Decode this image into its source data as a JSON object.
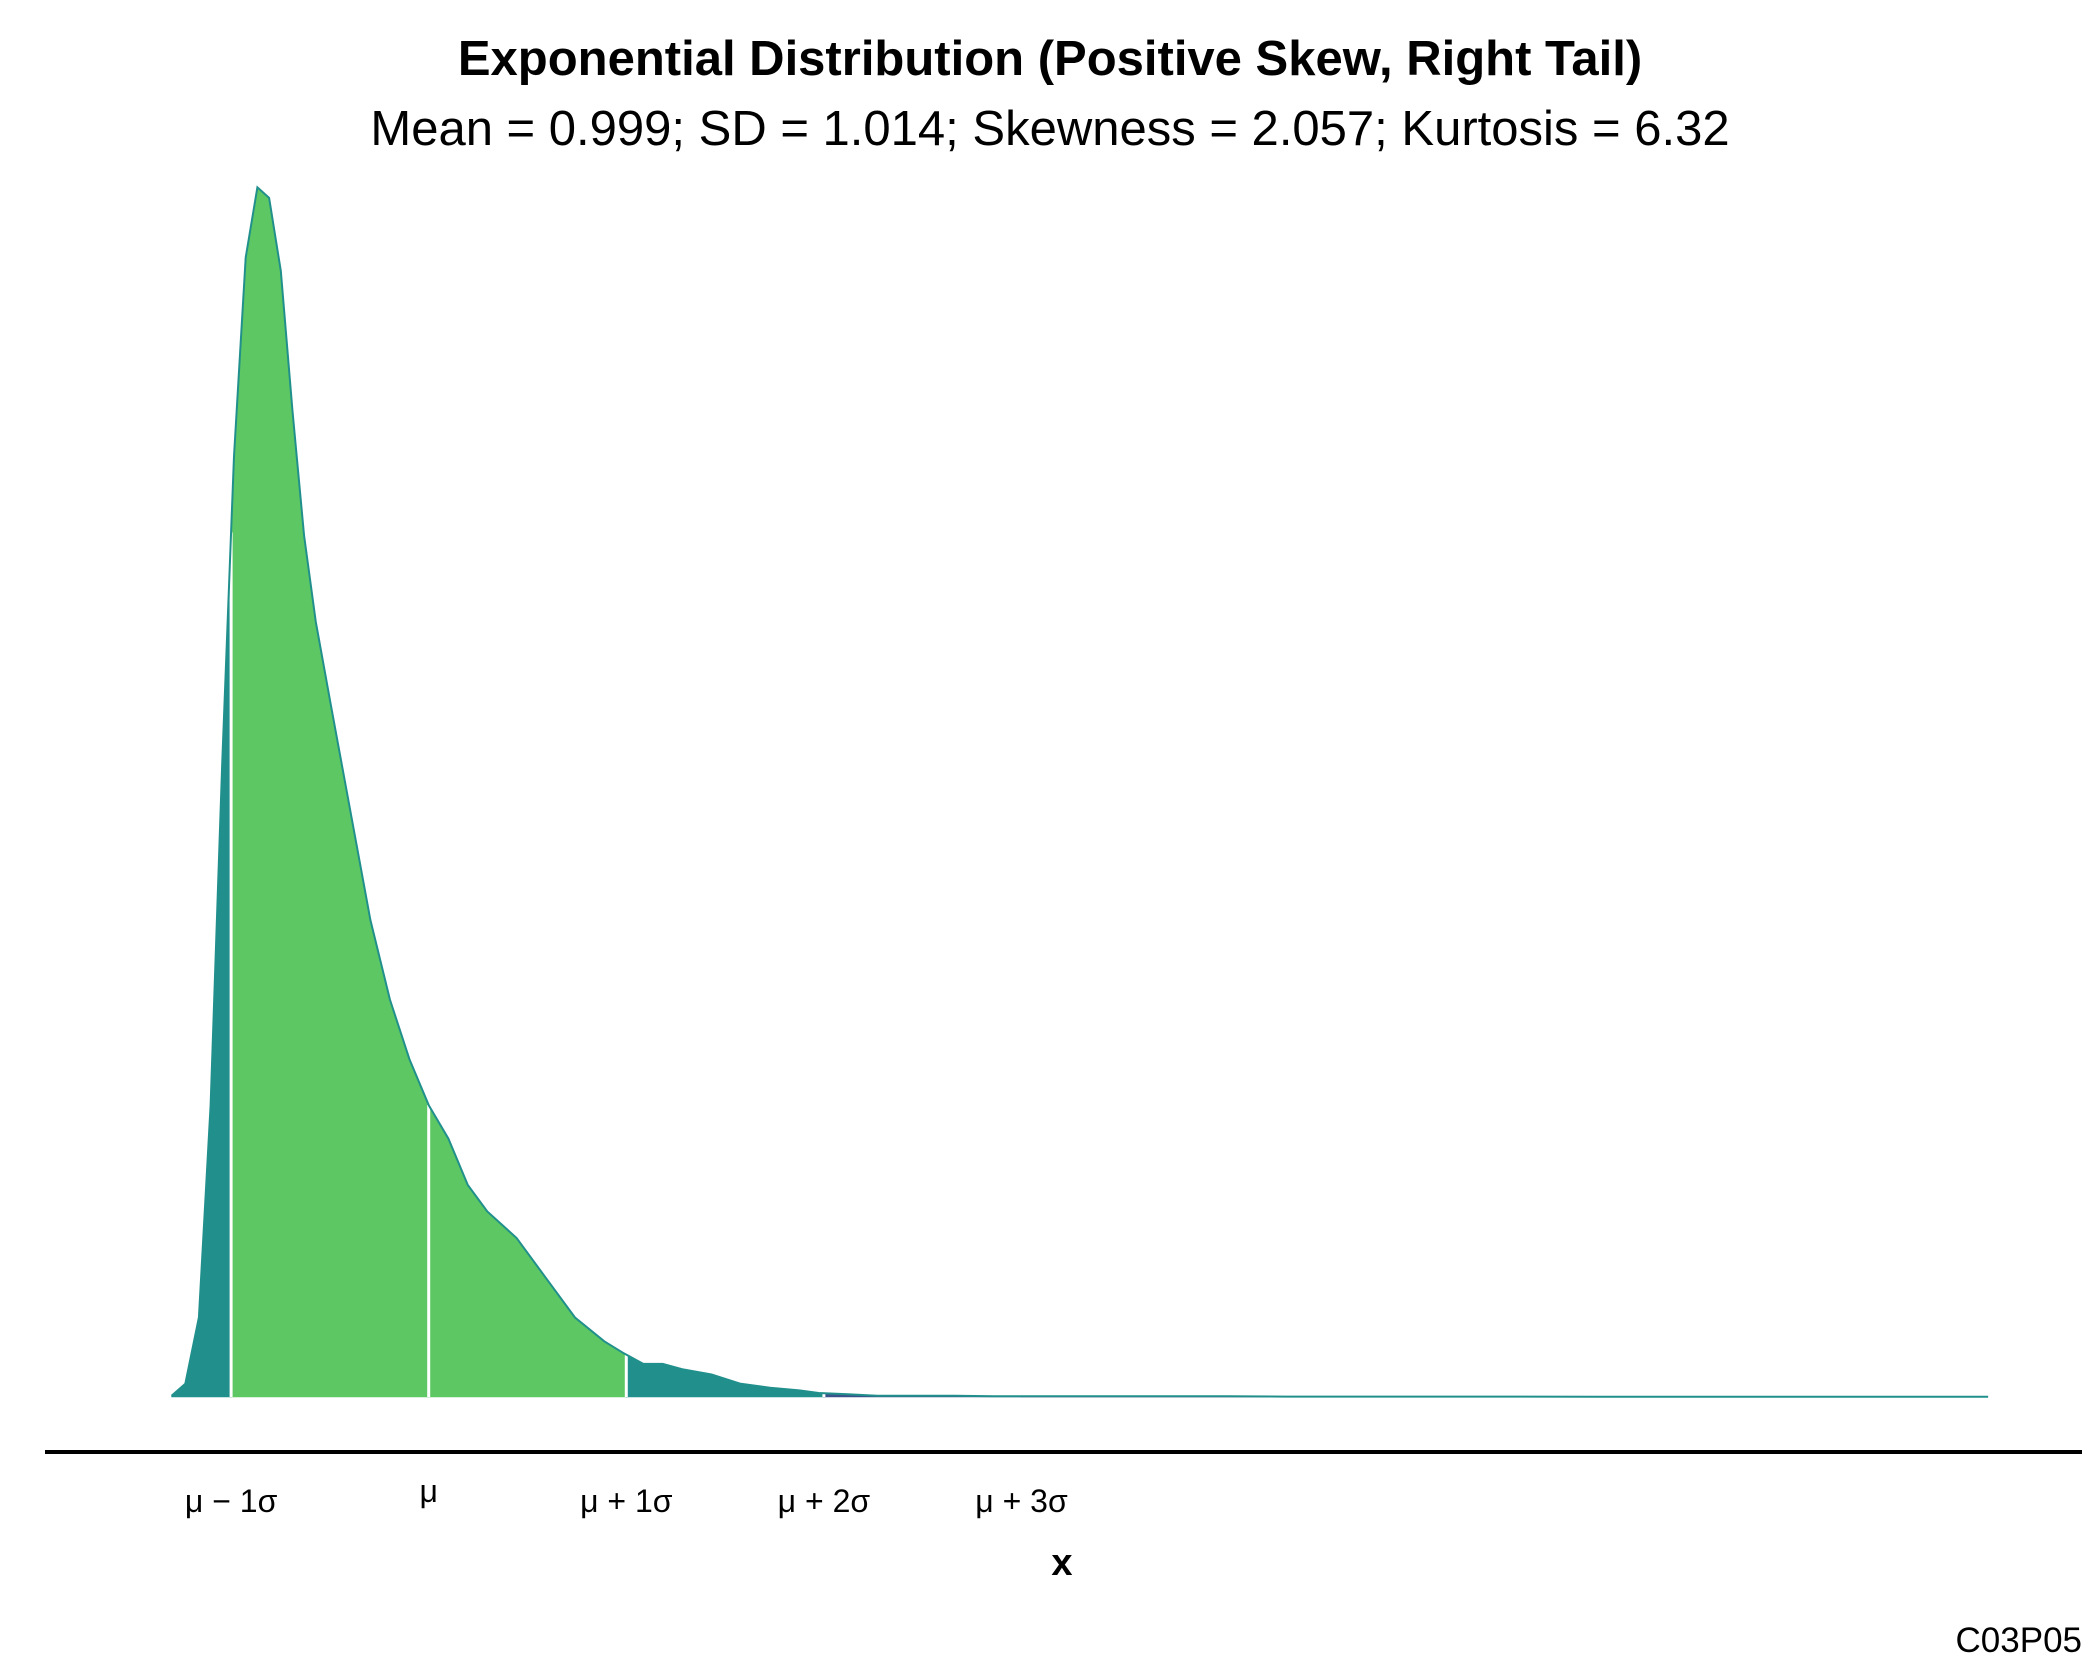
{
  "chart_data": {
    "type": "area",
    "title": "Exponential Distribution (Positive Skew, Right Tail)",
    "subtitle": "Mean = 0.999; SD = 1.014; Skewness = 2.057; Kurtosis = 6.32",
    "xlabel": "x",
    "ylabel": "",
    "caption": "C03P05",
    "grid": false,
    "legend": "none",
    "stats": {
      "mean": 0.999,
      "sd": 1.014,
      "skewness": 2.057,
      "kurtosis": 6.32
    },
    "xlim": [
      -0.2,
      9.0
    ],
    "ylim": [
      0,
      0.92
    ],
    "density": {
      "x": [
        -0.32,
        -0.25,
        -0.18,
        -0.12,
        -0.06,
        0.0,
        0.06,
        0.12,
        0.18,
        0.24,
        0.3,
        0.36,
        0.42,
        0.5,
        0.6,
        0.7,
        0.8,
        0.9,
        1.0,
        1.1,
        1.2,
        1.3,
        1.45,
        1.6,
        1.75,
        1.9,
        2.0,
        2.1,
        2.2,
        2.3,
        2.45,
        2.6,
        2.75,
        2.9,
        3.0,
        3.15,
        3.3,
        3.5,
        3.7,
        3.9,
        4.1,
        4.3,
        4.5,
        4.8,
        5.1,
        5.4,
        5.7,
        6.0,
        6.5,
        7.0,
        7.5,
        8.0,
        8.5,
        9.0
      ],
      "y": [
        0.001,
        0.01,
        0.06,
        0.22,
        0.48,
        0.71,
        0.86,
        0.913,
        0.905,
        0.85,
        0.745,
        0.65,
        0.585,
        0.52,
        0.44,
        0.36,
        0.3,
        0.255,
        0.22,
        0.195,
        0.16,
        0.14,
        0.12,
        0.09,
        0.06,
        0.042,
        0.033,
        0.025,
        0.025,
        0.021,
        0.017,
        0.01,
        0.007,
        0.005,
        0.003,
        0.002,
        0.001,
        0.001,
        0.001,
        0.0005,
        0.0005,
        0.0005,
        0.0005,
        0.0005,
        0.0005,
        0.0003,
        0.0003,
        0.0003,
        0.0003,
        0.0002,
        0.0002,
        0.0002,
        0.0002,
        0.0002
      ]
    },
    "bands": [
      {
        "from": -0.32,
        "to": -0.015,
        "color": "#21908C"
      },
      {
        "from": -0.015,
        "to": 0.999,
        "color": "#5DC863"
      },
      {
        "from": 0.999,
        "to": 2.013,
        "color": "#5DC863"
      },
      {
        "from": 2.013,
        "to": 3.027,
        "color": "#21908C"
      },
      {
        "from": 3.027,
        "to": 4.041,
        "color": "#3B528B"
      },
      {
        "from": 4.041,
        "to": 6.5,
        "color": "#440154"
      },
      {
        "from": 6.5,
        "to": 9.0,
        "color": "#21908C"
      }
    ],
    "outline_color": "#21908C",
    "marker_positions": [
      -0.015,
      0.999,
      2.013,
      3.027,
      4.041
    ],
    "tick_labels": [
      "μ − 1σ",
      "μ",
      "μ + 1σ",
      "μ + 2σ",
      "μ + 3σ"
    ]
  }
}
